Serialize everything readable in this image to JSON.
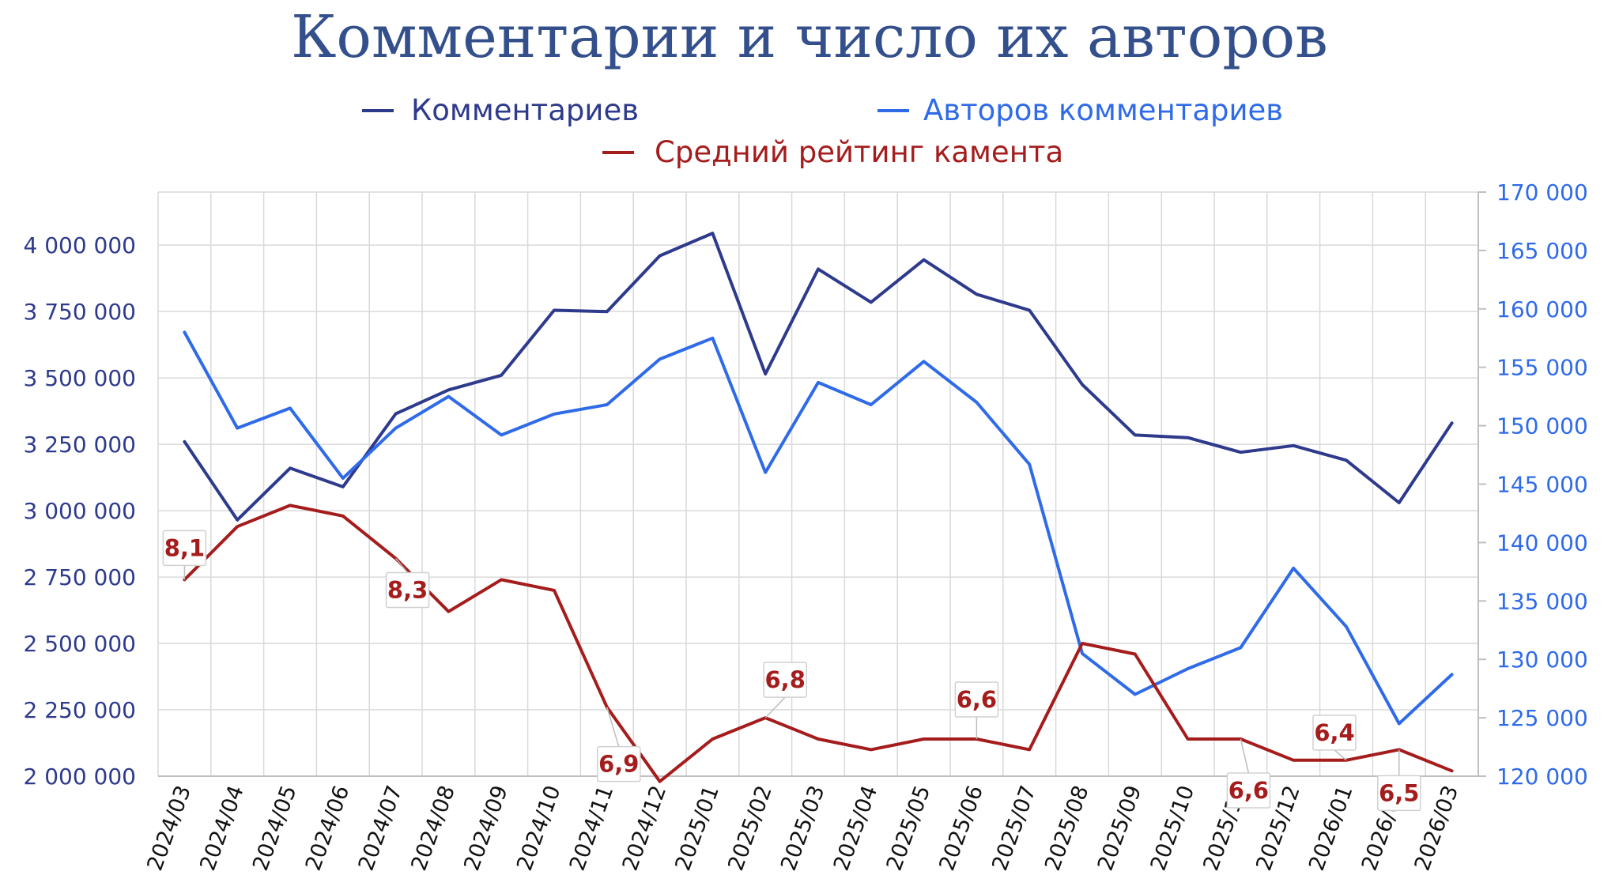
{
  "chart_data": {
    "type": "line",
    "title": "Комментарии и число их авторов",
    "categories": [
      "2024/03",
      "2024/04",
      "2024/05",
      "2024/06",
      "2024/07",
      "2024/08",
      "2024/09",
      "2024/10",
      "2024/11",
      "2024/12",
      "2025/01",
      "2025/02",
      "2025/03",
      "2025/04",
      "2025/05",
      "2025/06",
      "2025/07",
      "2025/08",
      "2025/09",
      "2025/10",
      "2025/11",
      "2025/12",
      "2026/01",
      "2026/02",
      "2026/03"
    ],
    "series": [
      {
        "name": "Комментариев",
        "axis": "left",
        "color": "#2e3a8c",
        "values": [
          3260000,
          2965000,
          3160000,
          3090000,
          3365000,
          3455000,
          3510000,
          3755000,
          3750000,
          3960000,
          4045000,
          3515000,
          3910000,
          3785000,
          3945000,
          3815000,
          3755000,
          3475000,
          3285000,
          3275000,
          3220000,
          3245000,
          3190000,
          3030000,
          3330000
        ]
      },
      {
        "name": "Авторов комментариев",
        "axis": "right",
        "color": "#2f6be8",
        "values": [
          158000,
          149800,
          151500,
          145500,
          149800,
          152500,
          149200,
          151000,
          151800,
          155700,
          157500,
          146000,
          153700,
          151800,
          155500,
          152000,
          146700,
          130500,
          127000,
          129200,
          131000,
          137800,
          132800,
          124500,
          128700
        ]
      },
      {
        "name": "Средний рейтинг камента",
        "axis": "left-scaled",
        "color": "#a51c1c",
        "values": [
          8.1,
          8.6,
          8.8,
          8.7,
          8.3,
          7.8,
          8.1,
          8.0,
          6.9,
          6.2,
          6.6,
          6.8,
          6.6,
          6.5,
          6.6,
          6.6,
          6.5,
          7.5,
          7.4,
          6.6,
          6.6,
          6.4,
          6.4,
          6.5,
          6.3
        ]
      }
    ],
    "rating_data_labels": [
      {
        "index": 0,
        "text": "8,1"
      },
      {
        "index": 4,
        "text": "8,3"
      },
      {
        "index": 8,
        "text": "6,9"
      },
      {
        "index": 11,
        "text": "6,8"
      },
      {
        "index": 15,
        "text": "6,6"
      },
      {
        "index": 20,
        "text": "6,6"
      },
      {
        "index": 22,
        "text": "6,4"
      },
      {
        "index": 23,
        "text": "6,5"
      }
    ],
    "left_axis": {
      "min": 2000000,
      "max": 4200000,
      "ticks": [
        "2 000 000",
        "2 250 000",
        "2 500 000",
        "2 750 000",
        "3 000 000",
        "3 250 000",
        "3 500 000",
        "3 750 000",
        "4 000 000"
      ],
      "color": "#2e3a8c"
    },
    "right_axis": {
      "min": 120000,
      "max": 170000,
      "ticks": [
        "120 000",
        "125 000",
        "130 000",
        "135 000",
        "140 000",
        "145 000",
        "150 000",
        "155 000",
        "160 000",
        "165 000",
        "170 000"
      ],
      "color": "#2f6be8"
    },
    "grid": true,
    "legend": "top"
  }
}
